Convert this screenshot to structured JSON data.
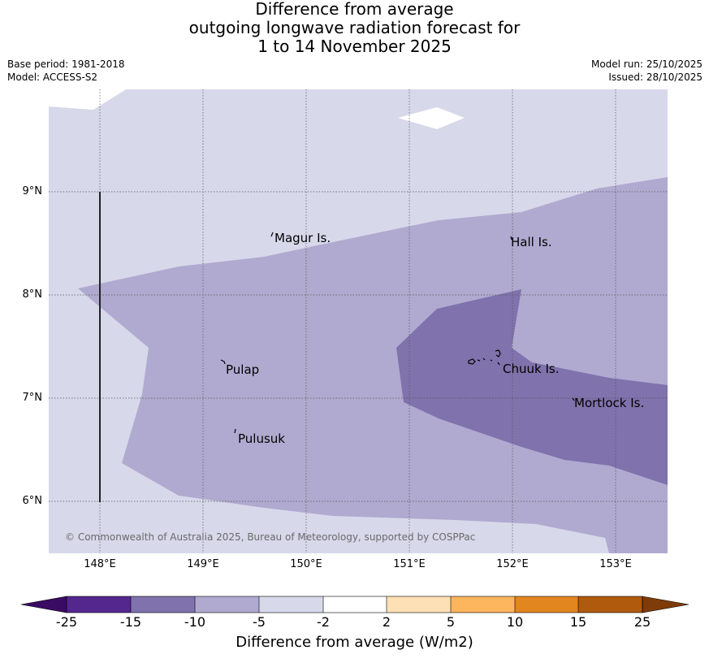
{
  "title": {
    "line1": "Difference from average",
    "line2": "outgoing longwave radiation forecast for",
    "line3": "1 to 14 November 2025"
  },
  "meta": {
    "base_period": "Base period: 1981-2018",
    "model": "Model: ACCESS-S2",
    "model_run": "Model run: 25/10/2025",
    "issued": "Issued: 28/10/2025"
  },
  "axes": {
    "y_ticks": [
      "9°N",
      "8°N",
      "7°N",
      "6°N"
    ],
    "x_ticks": [
      "148°E",
      "149°E",
      "150°E",
      "151°E",
      "152°E",
      "153°E"
    ]
  },
  "places": {
    "magur": "Magur Is.",
    "hall": "Hall Is.",
    "pulap": "Pulap",
    "chuuk": "Chuuk Is.",
    "mortlock": "Mortlock Is.",
    "pulusuk": "Pulusuk"
  },
  "copyright": "© Commonwealth of Australia 2025, Bureau of Meteorology, supported by COSPPac",
  "colorbar": {
    "title": "Difference from average (W/m2)",
    "labels": [
      "-25",
      "-15",
      "-10",
      "-5",
      "-2",
      "2",
      "5",
      "10",
      "15",
      "25"
    ],
    "colors": {
      "below": "#3a0b62",
      "c1": "#54278f",
      "c2": "#7f72ad",
      "c3": "#b0aad0",
      "c4": "#d7d8ea",
      "c5": "#ffffff",
      "c6": "#fde0b5",
      "c7": "#fdb55e",
      "c8": "#e2861f",
      "c9": "#b05a0e",
      "above": "#7f3b08"
    }
  }
}
